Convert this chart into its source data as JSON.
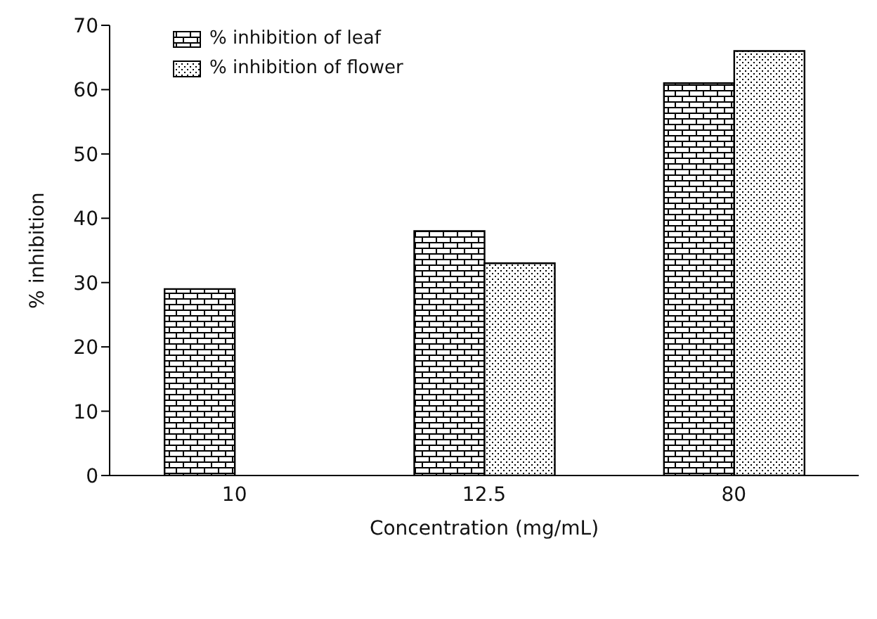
{
  "chart_data": {
    "type": "bar",
    "xlabel": "Concentration (mg/mL)",
    "ylabel": "% inhibition",
    "categories": [
      "10",
      "12.5",
      "80"
    ],
    "series": [
      {
        "name": "% inhibition of leaf",
        "color": "#000000",
        "values": [
          29,
          38,
          61
        ]
      },
      {
        "name": "% inhibition of flower",
        "color": "#000000",
        "values": [
          null,
          33,
          66
        ]
      }
    ],
    "ylim": [
      0,
      70
    ],
    "yticks": [
      0,
      10,
      20,
      30,
      40,
      50,
      60,
      70
    ],
    "legend": "top left"
  }
}
